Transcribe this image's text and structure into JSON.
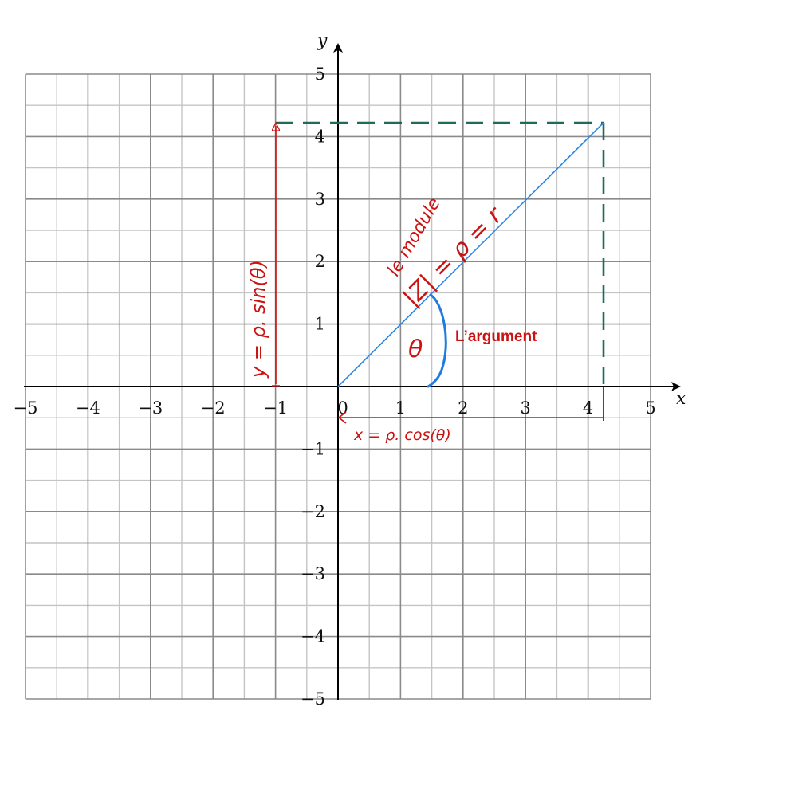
{
  "axes": {
    "x_label": "x",
    "y_label": "y",
    "x_ticks": [
      "−5",
      "−4",
      "−3",
      "−2",
      "−1",
      "0",
      "1",
      "2",
      "3",
      "4",
      "5"
    ],
    "y_ticks_pos": [
      "1",
      "2",
      "3",
      "4",
      "5"
    ],
    "y_ticks_neg": [
      "−1",
      "−2",
      "−3",
      "−4",
      "−5"
    ],
    "range": [
      -5,
      5
    ]
  },
  "point": {
    "x": 4.25,
    "y": 4.25
  },
  "annotations": {
    "modulus_top": "le module",
    "modulus_eq": "|Z| = ρ = r",
    "argument_symbol": "θ",
    "argument_label": "L’argument",
    "x_projection": "x = ρ. cos(θ)",
    "y_projection": "y = ρ. sin(θ)"
  },
  "colors": {
    "grid_major": "#8a8a8a",
    "grid_minor": "#c4c4c4",
    "vector": "#2a86e8",
    "arc": "#1e7be0",
    "dashed": "#1f6b5a",
    "annotation": "#cc1111"
  }
}
